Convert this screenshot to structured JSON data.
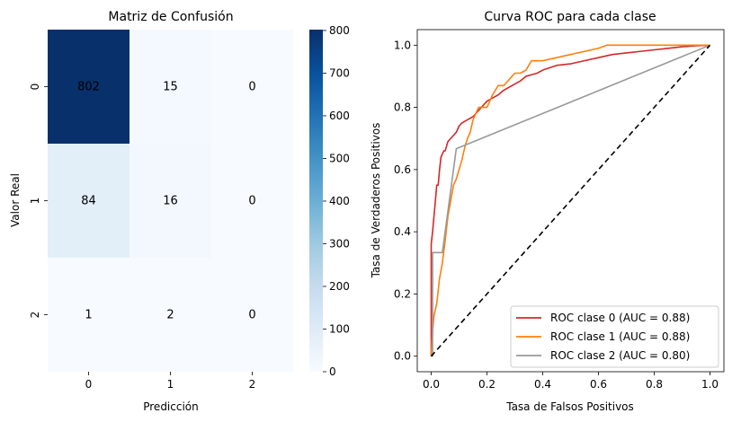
{
  "chart_data": [
    {
      "type": "heatmap",
      "title": "Matriz de Confusión",
      "xlabel": "Predicción",
      "ylabel": "Valor Real",
      "x_categories": [
        "0",
        "1",
        "2"
      ],
      "y_categories": [
        "0",
        "1",
        "2"
      ],
      "values": [
        [
          802,
          15,
          0
        ],
        [
          84,
          16,
          0
        ],
        [
          1,
          2,
          0
        ]
      ],
      "colormap": "Blues",
      "colorbar": {
        "min": 0,
        "max": 802,
        "ticks": [
          0,
          100,
          200,
          300,
          400,
          500,
          600,
          700,
          800
        ]
      },
      "annotation_colors": {
        "light": "#ffffff",
        "dark": "#262626"
      }
    },
    {
      "type": "line",
      "title": "Curva ROC para cada clase",
      "xlabel": "Tasa de Falsos Positivos",
      "ylabel": "Tasa de Verdaderos Positivos",
      "xlim": [
        -0.05,
        1.05
      ],
      "ylim": [
        -0.05,
        1.05
      ],
      "xticks": [
        "0.0",
        "0.2",
        "0.4",
        "0.6",
        "0.8",
        "1.0"
      ],
      "yticks": [
        "0.0",
        "0.2",
        "0.4",
        "0.6",
        "0.8",
        "1.0"
      ],
      "legend_position": "bottom-right",
      "series": [
        {
          "name": "ROC clase 0 (AUC = 0.88)",
          "color": "#d62728",
          "x": [
            0,
            0,
            0.005,
            0.01,
            0.015,
            0.02,
            0.025,
            0.03,
            0.035,
            0.04,
            0.045,
            0.05,
            0.06,
            0.07,
            0.08,
            0.09,
            0.1,
            0.11,
            0.12,
            0.13,
            0.14,
            0.15,
            0.16,
            0.18,
            0.2,
            0.22,
            0.24,
            0.26,
            0.28,
            0.3,
            0.32,
            0.34,
            0.36,
            0.38,
            0.4,
            0.45,
            0.5,
            0.55,
            0.6,
            0.65,
            0.7,
            0.75,
            0.8,
            0.85,
            0.9,
            0.95,
            1.0
          ],
          "y": [
            0,
            0.36,
            0.4,
            0.45,
            0.5,
            0.55,
            0.55,
            0.6,
            0.64,
            0.65,
            0.66,
            0.66,
            0.69,
            0.7,
            0.71,
            0.72,
            0.74,
            0.75,
            0.755,
            0.76,
            0.765,
            0.77,
            0.78,
            0.8,
            0.82,
            0.83,
            0.84,
            0.855,
            0.865,
            0.875,
            0.885,
            0.9,
            0.905,
            0.91,
            0.92,
            0.935,
            0.94,
            0.95,
            0.96,
            0.97,
            0.975,
            0.98,
            0.985,
            0.99,
            0.995,
            0.998,
            1.0
          ]
        },
        {
          "name": "ROC clase 1 (AUC = 0.88)",
          "color": "#ff7f0e",
          "x": [
            0,
            0.005,
            0.01,
            0.02,
            0.03,
            0.04,
            0.05,
            0.06,
            0.07,
            0.08,
            0.09,
            0.1,
            0.11,
            0.12,
            0.13,
            0.14,
            0.15,
            0.16,
            0.17,
            0.18,
            0.2,
            0.22,
            0.24,
            0.26,
            0.28,
            0.3,
            0.32,
            0.34,
            0.36,
            0.38,
            0.4,
            0.45,
            0.5,
            0.55,
            0.6,
            0.63,
            0.7,
            0.8,
            0.9,
            1.0
          ],
          "y": [
            0,
            0.08,
            0.13,
            0.17,
            0.25,
            0.3,
            0.37,
            0.45,
            0.5,
            0.55,
            0.57,
            0.6,
            0.63,
            0.67,
            0.7,
            0.72,
            0.76,
            0.78,
            0.8,
            0.8,
            0.8,
            0.84,
            0.87,
            0.87,
            0.89,
            0.91,
            0.91,
            0.92,
            0.95,
            0.95,
            0.95,
            0.96,
            0.97,
            0.98,
            0.99,
            1.0,
            1.0,
            1.0,
            1.0,
            1.0
          ]
        },
        {
          "name": "ROC clase 2 (AUC = 0.80)",
          "color": "#999999",
          "x": [
            0,
            0.005,
            0.005,
            0.04,
            0.04,
            0.09,
            1.0
          ],
          "y": [
            0,
            0,
            0.333,
            0.333,
            0.333,
            0.667,
            1.0
          ]
        },
        {
          "name": "",
          "color": "#000000",
          "dashed": true,
          "x": [
            0,
            1
          ],
          "y": [
            0,
            1
          ]
        }
      ]
    }
  ]
}
